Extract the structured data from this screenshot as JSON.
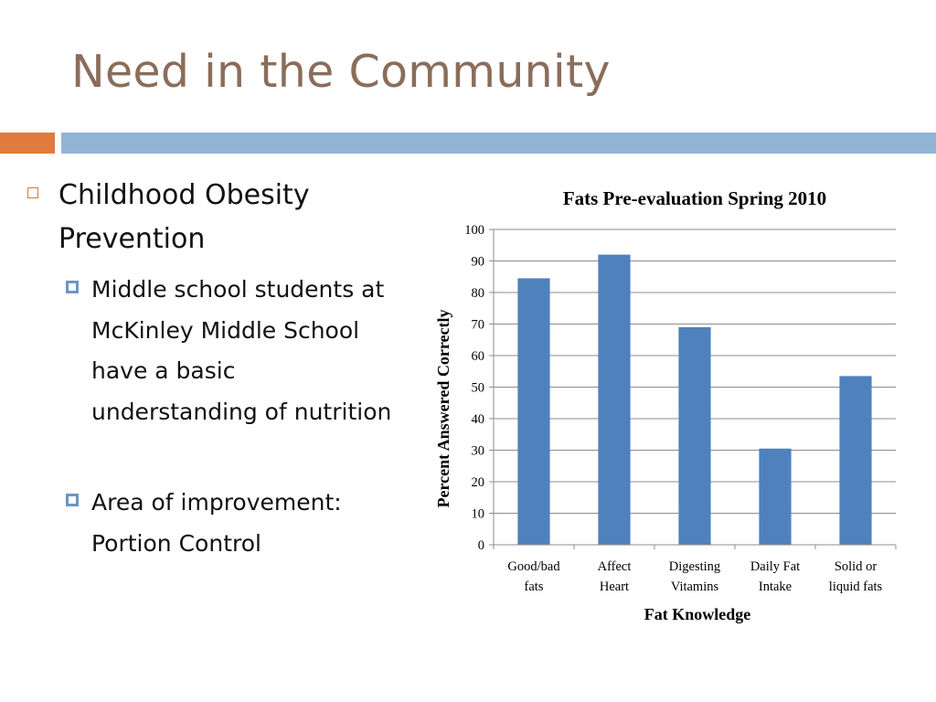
{
  "slide": {
    "title": "Need in the Community",
    "bullets": [
      {
        "text": "Childhood Obesity Prevention",
        "sub": [
          {
            "text": "Middle school students at McKinley Middle School have a basic understanding of nutrition"
          },
          {
            "text": "Area of improvement: Portion Control"
          }
        ]
      }
    ]
  },
  "colors": {
    "title": "#8a6d5a",
    "accent_bar": "#e07b3e",
    "header_bar": "#91b4d4",
    "bar_fill": "#4f81bd"
  },
  "chart_data": {
    "type": "bar",
    "title": "Fats Pre-evaluation Spring 2010",
    "xlabel": "Fat Knowledge",
    "ylabel": "Percent Answered Correctly",
    "categories": [
      [
        "Good/bad",
        "fats"
      ],
      [
        "Affect",
        "Heart"
      ],
      [
        "Digesting",
        "Vitamins"
      ],
      [
        "Daily Fat",
        "Intake"
      ],
      [
        "Solid or",
        "liquid fats"
      ]
    ],
    "values": [
      84.5,
      92,
      69,
      30.5,
      53.5
    ],
    "ylim": [
      0,
      100
    ],
    "yticks": [
      0,
      10,
      20,
      30,
      40,
      50,
      60,
      70,
      80,
      90,
      100
    ],
    "grid": true,
    "legend": "none"
  }
}
